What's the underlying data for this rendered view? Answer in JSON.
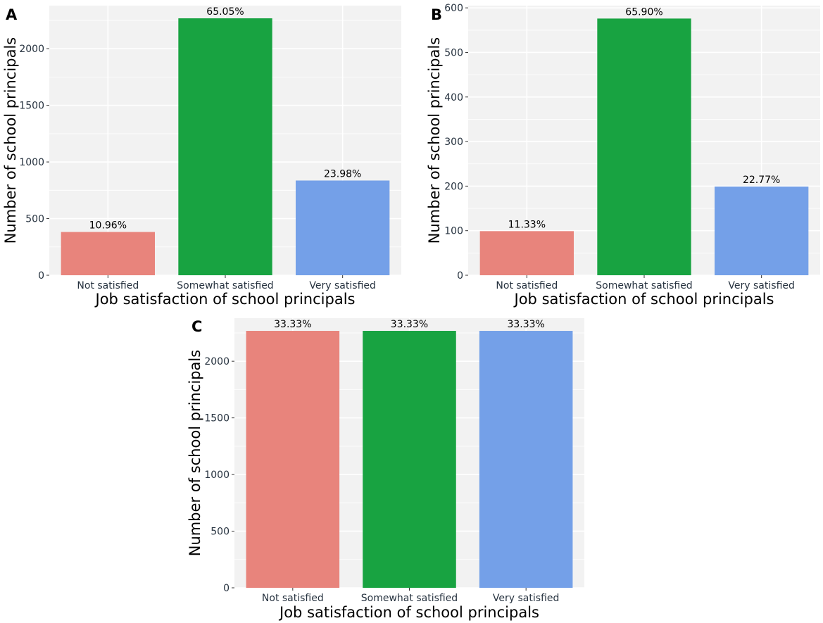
{
  "chart_data": [
    {
      "panel": "A",
      "type": "bar",
      "categories": [
        "Not satisfied",
        "Somewhat satisfied",
        "Very satisfied"
      ],
      "values": [
        382,
        2268,
        836
      ],
      "labels": [
        "10.96%",
        "65.05%",
        "23.98%"
      ],
      "colors": [
        "#e8847c",
        "#18a341",
        "#74a0e8"
      ],
      "xlabel": "Job satisfaction of school principals",
      "ylabel": "Number of school principals",
      "ylim": [
        0,
        2380
      ],
      "yticks": [
        0,
        500,
        1000,
        1500,
        2000
      ]
    },
    {
      "panel": "B",
      "type": "bar",
      "categories": [
        "Not satisfied",
        "Somewhat satisfied",
        "Very satisfied"
      ],
      "values": [
        99,
        576,
        199
      ],
      "labels": [
        "11.33%",
        "65.90%",
        "22.77%"
      ],
      "colors": [
        "#e8847c",
        "#18a341",
        "#74a0e8"
      ],
      "xlabel": "Job satisfaction of school principals",
      "ylabel": "Number of school principals",
      "ylim": [
        0,
        605
      ],
      "yticks": [
        0,
        100,
        200,
        300,
        400,
        500,
        600
      ]
    },
    {
      "panel": "C",
      "type": "bar",
      "categories": [
        "Not satisfied",
        "Somewhat satisfied",
        "Very satisfied"
      ],
      "values": [
        2268,
        2268,
        2268
      ],
      "labels": [
        "33.33%",
        "33.33%",
        "33.33%"
      ],
      "colors": [
        "#e8847c",
        "#18a341",
        "#74a0e8"
      ],
      "xlabel": "Job satisfaction of school principals",
      "ylabel": "Number of school principals",
      "ylim": [
        0,
        2380
      ],
      "yticks": [
        0,
        500,
        1000,
        1500,
        2000
      ]
    }
  ]
}
